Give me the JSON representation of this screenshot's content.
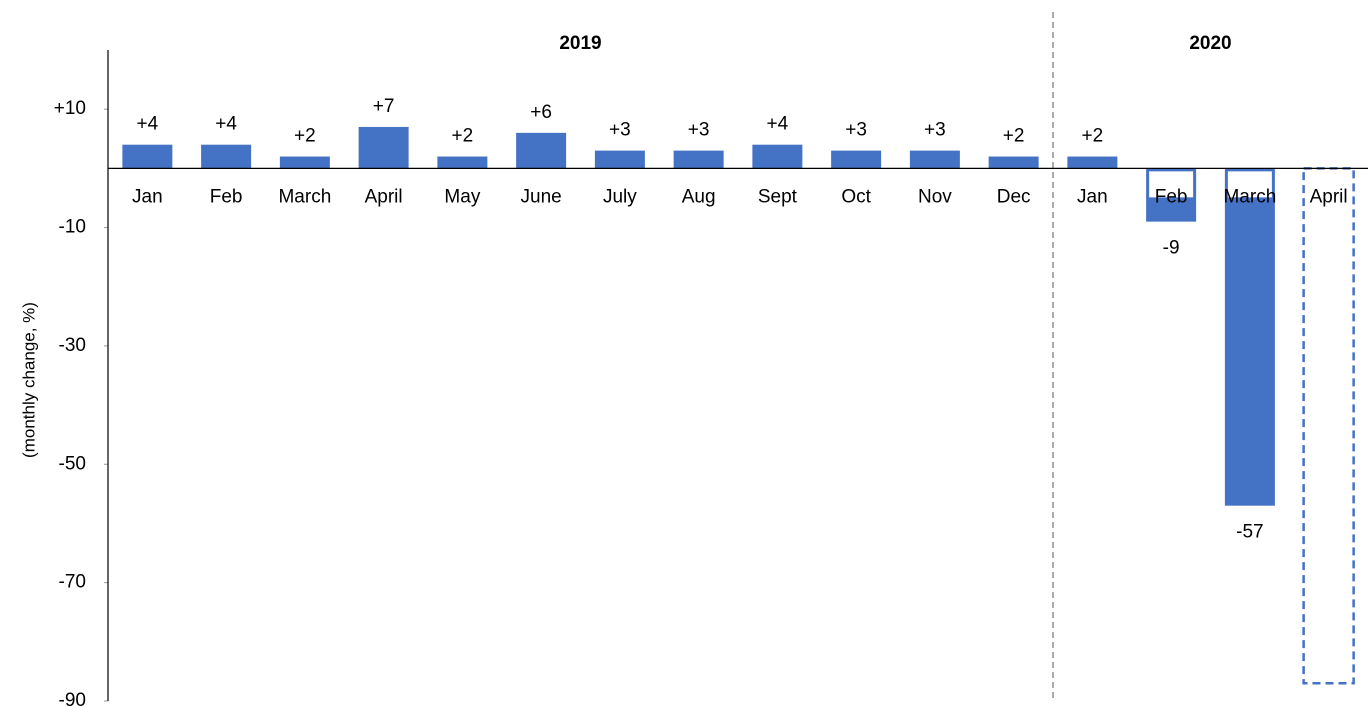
{
  "chart_data": {
    "type": "bar",
    "y_label": "(monthly change, %)",
    "groups": [
      {
        "label": "2019",
        "size": 12
      },
      {
        "label": "2020",
        "size": 4
      }
    ],
    "categories": [
      "Jan",
      "Feb",
      "March",
      "April",
      "May",
      "June",
      "July",
      "Aug",
      "Sept",
      "Oct",
      "Nov",
      "Dec",
      "Jan",
      "Feb",
      "March",
      "April"
    ],
    "values": [
      4,
      4,
      2,
      7,
      2,
      6,
      3,
      3,
      4,
      3,
      3,
      2,
      2,
      -9,
      -57,
      -87
    ],
    "value_labels": [
      "+4",
      "+4",
      "+2",
      "+7",
      "+2",
      "+6",
      "+3",
      "+3",
      "+4",
      "+3",
      "+3",
      "+2",
      "+2",
      "-9",
      "-57",
      null
    ],
    "bar_styles": [
      "solid",
      "solid",
      "solid",
      "solid",
      "solid",
      "solid",
      "solid",
      "solid",
      "solid",
      "solid",
      "solid",
      "solid",
      "solid",
      "solid",
      "solid",
      "dashed"
    ],
    "color": "#4472c4",
    "ylim": [
      -90,
      20
    ],
    "yticks": [
      {
        "value": 10,
        "label": "+10"
      },
      -10,
      -30,
      -50,
      -70,
      -90
    ],
    "grid": false
  }
}
